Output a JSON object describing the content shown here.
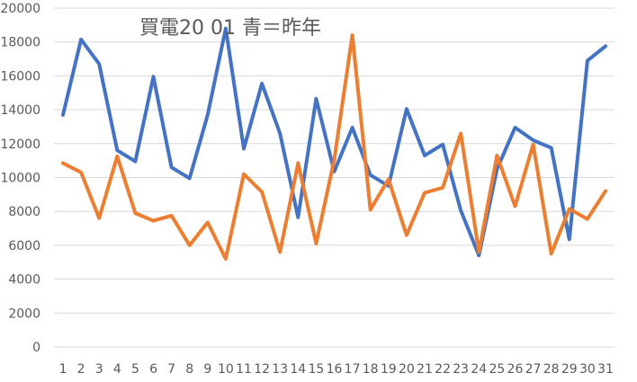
{
  "chart_data": {
    "type": "line",
    "title": "買電20  01    青＝昨年",
    "xlabel": "",
    "ylabel": "",
    "x": [
      1,
      2,
      3,
      4,
      5,
      6,
      7,
      8,
      9,
      10,
      11,
      12,
      13,
      14,
      15,
      16,
      17,
      18,
      19,
      20,
      21,
      22,
      23,
      24,
      25,
      26,
      27,
      28,
      29,
      30,
      31
    ],
    "ylim": [
      0,
      20000
    ],
    "yticks": [
      0,
      2000,
      4000,
      6000,
      8000,
      10000,
      12000,
      14000,
      16000,
      18000,
      20000
    ],
    "grid": true,
    "legend": "none",
    "series": [
      {
        "color": "#4472c4",
        "values": [
          13700,
          18150,
          16700,
          11600,
          10950,
          15950,
          10600,
          9950,
          13700,
          18800,
          11700,
          15550,
          12600,
          7650,
          14650,
          10350,
          12950,
          10150,
          9500,
          14050,
          11300,
          11950,
          8050,
          5400,
          10500,
          12950,
          12200,
          11750,
          6350,
          16900,
          17750
        ]
      },
      {
        "color": "#ed7d31",
        "values": [
          10850,
          10300,
          7600,
          11250,
          7900,
          7450,
          7750,
          6000,
          7350,
          5200,
          10200,
          9150,
          5600,
          10850,
          6100,
          11050,
          18400,
          8100,
          9900,
          6600,
          9100,
          9400,
          12600,
          5600,
          11300,
          8300,
          11950,
          5500,
          8150,
          7550,
          9200
        ]
      }
    ]
  }
}
